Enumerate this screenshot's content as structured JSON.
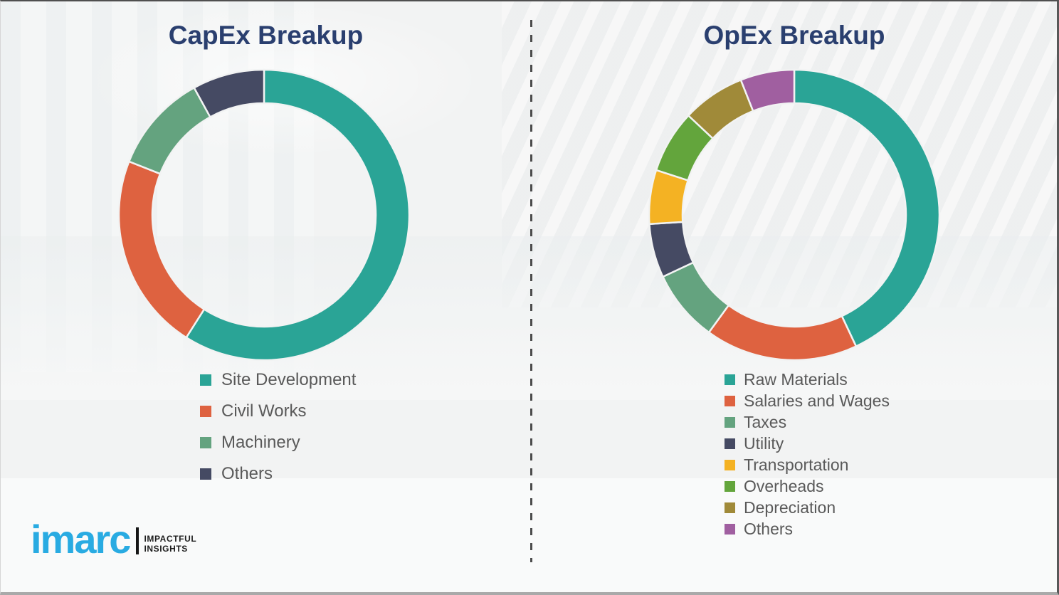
{
  "chart_data": [
    {
      "type": "donut",
      "title": "CapEx Breakup",
      "categories": [
        "Site Development",
        "Civil Works",
        "Machinery",
        "Others"
      ],
      "values": [
        59,
        22,
        11,
        8
      ],
      "values_note": "percent shares estimated from arc angles (no labels shown)",
      "colors": [
        "#2AA496",
        "#DE6240",
        "#64A37F",
        "#454A63"
      ],
      "start_angle_deg": 0,
      "direction": "clockwise",
      "inner_radius_ratio": 0.77,
      "legend_position": "below-chart-left",
      "grid": false
    },
    {
      "type": "donut",
      "title": "OpEx Breakup",
      "categories": [
        "Raw Materials",
        "Salaries and Wages",
        "Taxes",
        "Utility",
        "Transportation",
        "Overheads",
        "Depreciation",
        "Others"
      ],
      "values": [
        43,
        17,
        8,
        6,
        6,
        7,
        7,
        6
      ],
      "values_note": "percent shares estimated from arc angles (no labels shown)",
      "colors": [
        "#2AA496",
        "#DE6240",
        "#64A37F",
        "#454A63",
        "#F4B223",
        "#63A53C",
        "#A08A39",
        "#A05FA0"
      ],
      "start_angle_deg": 0,
      "direction": "clockwise",
      "inner_radius_ratio": 0.77,
      "legend_position": "below-chart-left",
      "grid": false
    }
  ],
  "logo": {
    "brand": "imarc",
    "tagline_line1": "IMPACTFUL",
    "tagline_line2": "INSIGHTS",
    "brand_color": "#29ABE2"
  },
  "style": {
    "title_color": "#2A3F6F",
    "legend_text_color": "#595959",
    "background_color": "#F2F3F3",
    "divider_color": "#4C4C4C",
    "segment_gap_color": "#F2F3F3"
  }
}
